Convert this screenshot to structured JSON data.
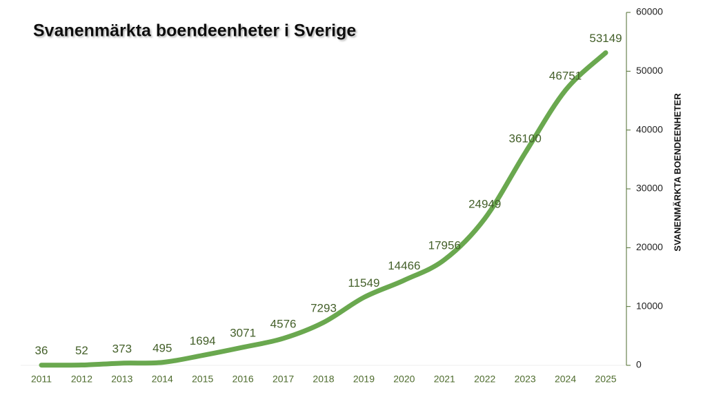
{
  "chart_data": {
    "type": "line",
    "title": "Svanenmärkta boendeenheter i Sverige",
    "y_label": "SVANENMÄRKTA BOENDEENHETER",
    "categories": [
      "2011",
      "2012",
      "2013",
      "2014",
      "2015",
      "2016",
      "2017",
      "2018",
      "2019",
      "2020",
      "2021",
      "2022",
      "2023",
      "2024",
      "2025"
    ],
    "values": [
      36,
      52,
      373,
      495,
      1694,
      3071,
      4576,
      7293,
      11549,
      14466,
      17956,
      24949,
      36100,
      46751,
      53149
    ],
    "color": "#6aa84f",
    "y_axis_side": "right",
    "ylim": [
      0,
      60000
    ],
    "yticks": [
      0,
      10000,
      20000,
      30000,
      40000,
      50000,
      60000
    ]
  }
}
